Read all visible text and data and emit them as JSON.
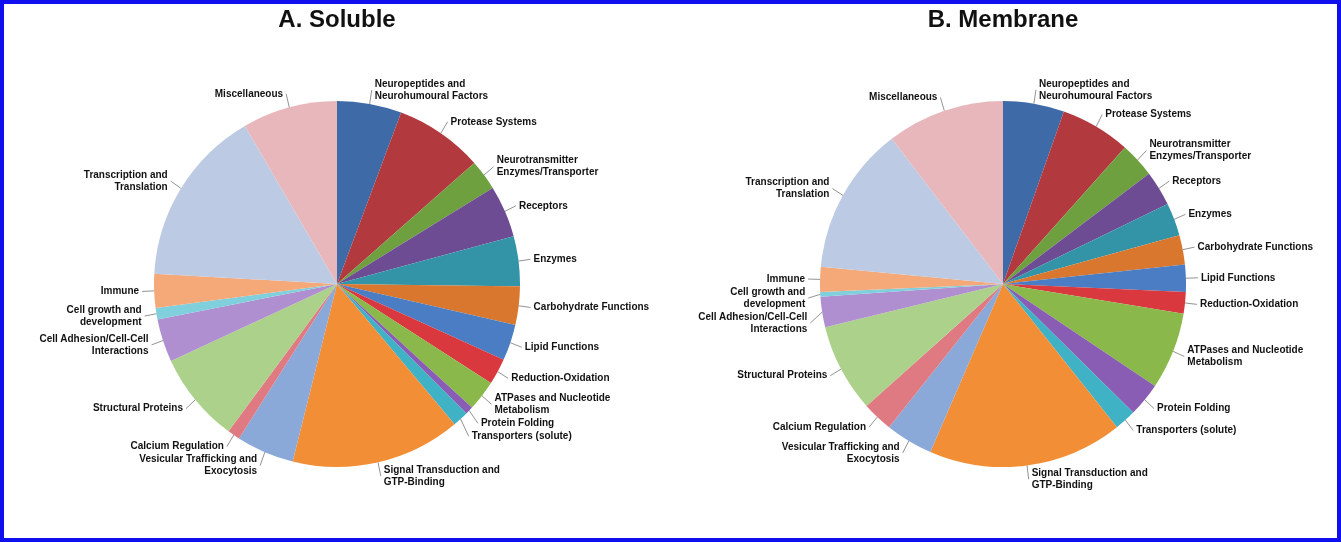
{
  "chart_data": [
    {
      "type": "pie",
      "title": "A. Soluble",
      "categories": [
        "Neuropeptides and Neurohumoural Factors",
        "Protease Systems",
        "Neurotransmitter Enzymes/Transporter",
        "Receptors",
        "Enzymes",
        "Carbohydrate Functions",
        "Lipid Functions",
        "Reduction-Oxidation",
        "ATPases and Nucleotide Metabolism",
        "Protein Folding",
        "Transporters (solute)",
        "Signal Transduction and GTP-Binding",
        "Vesicular Trafficking and Exocytosis",
        "Calcium Regulation",
        "Structural Proteins",
        "Cell Adhesion/Cell-Cell Interactions",
        "Cell growth and development",
        "Immune",
        "Transcription and Translation",
        "Miscellaneous"
      ],
      "values": [
        5.7,
        7.8,
        2.7,
        4.6,
        4.4,
        3.4,
        3.2,
        2.3,
        2.7,
        0.7,
        1.4,
        15.0,
        5.1,
        1.1,
        8.0,
        3.8,
        1.0,
        3.0,
        15.7,
        8.4
      ],
      "colors": [
        "#3e6ba8",
        "#b23a3f",
        "#6fa03f",
        "#6e4c94",
        "#3394a8",
        "#d9772f",
        "#4a7dc3",
        "#d9383e",
        "#8ab84a",
        "#8a5db5",
        "#3fb2c6",
        "#f28e35",
        "#8aa8d8",
        "#e07a82",
        "#acd18a",
        "#b08fd0",
        "#7fcfdc",
        "#f5a878",
        "#bccbe3",
        "#e8b7bc"
      ]
    },
    {
      "type": "pie",
      "title": "B. Membrane",
      "categories": [
        "Neuropeptides and Neurohumoural Factors",
        "Protease Systems",
        "Neurotransmitter Enzymes/Transporter",
        "Receptors",
        "Enzymes",
        "Carbohydrate Functions",
        "Lipid Functions",
        "Reduction-Oxidation",
        "ATPases and Nucleotide Metabolism",
        "Protein Folding",
        "Transporters (solute)",
        "Signal Transduction and GTP-Binding",
        "Vesicular Trafficking and Exocytosis",
        "Calcium Regulation",
        "Structural Proteins",
        "Cell Adhesion/Cell-Cell Interactions",
        "Cell growth and development",
        "Immune",
        "Transcription and Translation",
        "Miscellaneous"
      ],
      "values": [
        5.4,
        6.2,
        3.1,
        3.1,
        2.9,
        2.6,
        2.4,
        1.9,
        6.8,
        3.0,
        1.9,
        17.2,
        4.2,
        2.7,
        7.8,
        2.7,
        0.4,
        2.2,
        13.1,
        10.4
      ],
      "colors": [
        "#3e6ba8",
        "#b23a3f",
        "#6fa03f",
        "#6e4c94",
        "#3394a8",
        "#d9772f",
        "#4a7dc3",
        "#d9383e",
        "#8ab84a",
        "#8a5db5",
        "#3fb2c6",
        "#f28e35",
        "#8aa8d8",
        "#e07a82",
        "#acd18a",
        "#b08fd0",
        "#7fcfdc",
        "#f5a878",
        "#bccbe3",
        "#e8b7bc"
      ]
    }
  ]
}
